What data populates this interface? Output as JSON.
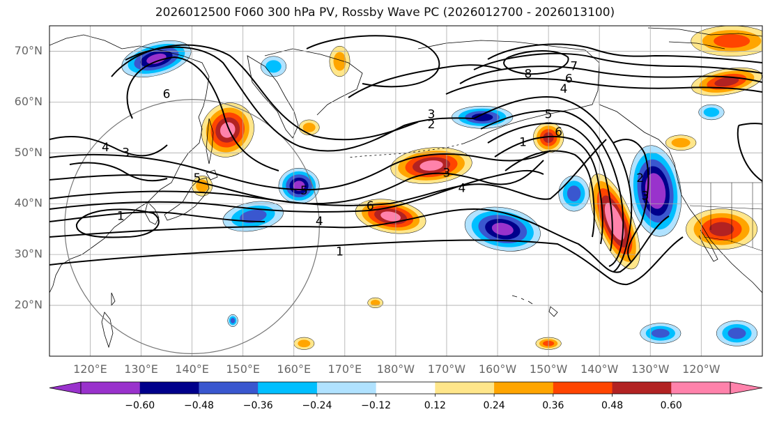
{
  "title": "2026012500 F060 300 hPa PV, Rossby Wave PC (2026012700 - 2026013100)",
  "map": {
    "lon_range": [
      112,
      252
    ],
    "lat_range": [
      10,
      75
    ],
    "lat_ticks": [
      {
        "lat": 70,
        "label": "70°N"
      },
      {
        "lat": 60,
        "label": "60°N"
      },
      {
        "lat": 50,
        "label": "50°N"
      },
      {
        "lat": 40,
        "label": "40°N"
      },
      {
        "lat": 30,
        "label": "30°N"
      },
      {
        "lat": 20,
        "label": "20°N"
      }
    ],
    "lon_ticks": [
      {
        "lon": 120,
        "label": "120°E"
      },
      {
        "lon": 130,
        "label": "130°E"
      },
      {
        "lon": 140,
        "label": "140°E"
      },
      {
        "lon": 150,
        "label": "150°E"
      },
      {
        "lon": 160,
        "label": "160°E"
      },
      {
        "lon": 170,
        "label": "170°E"
      },
      {
        "lon": 180,
        "label": "180°W"
      },
      {
        "lon": 190,
        "label": "170°W"
      },
      {
        "lon": 200,
        "label": "160°W"
      },
      {
        "lon": 210,
        "label": "150°W"
      },
      {
        "lon": 220,
        "label": "140°W"
      },
      {
        "lon": 230,
        "label": "130°W"
      },
      {
        "lon": 240,
        "label": "120°W"
      }
    ],
    "gridlines": true,
    "circle": {
      "lon": 140,
      "lat": 35.5,
      "radius_deg": 25
    }
  },
  "colorbar": {
    "colors": [
      "#9932cc",
      "#00008b",
      "#3a57cf",
      "#00bfff",
      "#b0e2ff",
      "#ffffff",
      "#ffe68a",
      "#ffa500",
      "#ff4500",
      "#b22222",
      "#ff82ab"
    ],
    "tick_labels": [
      "−0.60",
      "−0.48",
      "−0.36",
      "−0.24",
      "−0.12",
      "0.12",
      "0.24",
      "0.36",
      "0.48",
      "0.60"
    ],
    "extend": "both"
  },
  "anomalies": [
    {
      "lon": 133,
      "lat": 68.5,
      "rx": 7,
      "ry": 3.2,
      "rot": -15,
      "sign": -1,
      "levels": 5
    },
    {
      "lon": 156,
      "lat": 67,
      "rx": 2.5,
      "ry": 2,
      "rot": 0,
      "sign": -1,
      "levels": 2
    },
    {
      "lon": 147,
      "lat": 54.5,
      "rx": 5,
      "ry": 5.5,
      "rot": 35,
      "sign": 1,
      "levels": 5
    },
    {
      "lon": 161,
      "lat": 43.5,
      "rx": 4,
      "ry": 3.5,
      "rot": 0,
      "sign": -1,
      "levels": 5
    },
    {
      "lon": 152,
      "lat": 37.5,
      "rx": 6,
      "ry": 2.8,
      "rot": -10,
      "sign": -1,
      "levels": 3
    },
    {
      "lon": 179,
      "lat": 37.5,
      "rx": 7,
      "ry": 3.2,
      "rot": 10,
      "sign": 1,
      "levels": 5
    },
    {
      "lon": 187,
      "lat": 47.5,
      "rx": 8,
      "ry": 3.5,
      "rot": -5,
      "sign": 1,
      "levels": 5
    },
    {
      "lon": 197,
      "lat": 57,
      "rx": 6,
      "ry": 2.2,
      "rot": 0,
      "sign": -1,
      "levels": 4
    },
    {
      "lon": 201,
      "lat": 35,
      "rx": 7.5,
      "ry": 4.2,
      "rot": 10,
      "sign": -1,
      "levels": 5
    },
    {
      "lon": 215,
      "lat": 42,
      "rx": 3,
      "ry": 3.5,
      "rot": 0,
      "sign": -1,
      "levels": 3
    },
    {
      "lon": 210,
      "lat": 53,
      "rx": 3,
      "ry": 3,
      "rot": 0,
      "sign": 1,
      "levels": 4
    },
    {
      "lon": 223,
      "lat": 36.5,
      "rx": 3.5,
      "ry": 10,
      "rot": -22,
      "sign": 1,
      "levels": 6
    },
    {
      "lon": 231,
      "lat": 42.5,
      "rx": 5,
      "ry": 9,
      "rot": -8,
      "sign": -1,
      "levels": 6
    },
    {
      "lon": 244,
      "lat": 35,
      "rx": 7,
      "ry": 4,
      "rot": 0,
      "sign": 1,
      "levels": 4
    },
    {
      "lon": 246,
      "lat": 72,
      "rx": 8,
      "ry": 3,
      "rot": 0,
      "sign": 1,
      "levels": 3
    },
    {
      "lon": 245,
      "lat": 64,
      "rx": 7,
      "ry": 2.5,
      "rot": -10,
      "sign": 1,
      "levels": 4
    },
    {
      "lon": 232,
      "lat": 14.5,
      "rx": 4,
      "ry": 2,
      "rot": 0,
      "sign": -1,
      "levels": 3
    },
    {
      "lon": 247,
      "lat": 14.5,
      "rx": 4,
      "ry": 2.5,
      "rot": 0,
      "sign": -1,
      "levels": 3
    },
    {
      "lon": 210,
      "lat": 12.5,
      "rx": 2.5,
      "ry": 1.2,
      "rot": 0,
      "sign": 1,
      "levels": 3
    },
    {
      "lon": 162,
      "lat": 12.5,
      "rx": 2,
      "ry": 1.2,
      "rot": 0,
      "sign": 1,
      "levels": 2
    },
    {
      "lon": 176,
      "lat": 20.5,
      "rx": 1.5,
      "ry": 1,
      "rot": 0,
      "sign": 1,
      "levels": 2
    },
    {
      "lon": 169,
      "lat": 68,
      "rx": 2,
      "ry": 3,
      "rot": 0,
      "sign": 1,
      "levels": 2
    },
    {
      "lon": 163,
      "lat": 55,
      "rx": 2,
      "ry": 1.5,
      "rot": 0,
      "sign": 1,
      "levels": 2
    },
    {
      "lon": 142,
      "lat": 43.5,
      "rx": 2,
      "ry": 2,
      "rot": 0,
      "sign": 1,
      "levels": 2
    },
    {
      "lon": 148,
      "lat": 17,
      "rx": 1,
      "ry": 1.2,
      "rot": 0,
      "sign": -1,
      "levels": 3
    },
    {
      "lon": 242,
      "lat": 58,
      "rx": 2.5,
      "ry": 1.5,
      "rot": 0,
      "sign": -1,
      "levels": 2
    },
    {
      "lon": 236,
      "lat": 52,
      "rx": 3,
      "ry": 1.5,
      "rot": 0,
      "sign": 1,
      "levels": 2
    }
  ],
  "contour_labels": [
    {
      "lon": 135,
      "lat": 61.5,
      "text": "6"
    },
    {
      "lon": 123,
      "lat": 51,
      "text": "4"
    },
    {
      "lon": 127,
      "lat": 50,
      "text": "3"
    },
    {
      "lon": 141,
      "lat": 45,
      "text": "5"
    },
    {
      "lon": 126,
      "lat": 37.5,
      "text": "1"
    },
    {
      "lon": 162,
      "lat": 42.5,
      "text": "5"
    },
    {
      "lon": 165,
      "lat": 36.5,
      "text": "4"
    },
    {
      "lon": 175,
      "lat": 39.5,
      "text": "6"
    },
    {
      "lon": 190,
      "lat": 46,
      "text": "3"
    },
    {
      "lon": 193,
      "lat": 43,
      "text": "4"
    },
    {
      "lon": 187,
      "lat": 57.5,
      "text": "3"
    },
    {
      "lon": 187,
      "lat": 55.5,
      "text": "2"
    },
    {
      "lon": 205,
      "lat": 52,
      "text": "1"
    },
    {
      "lon": 212,
      "lat": 54,
      "text": "6"
    },
    {
      "lon": 210,
      "lat": 57.5,
      "text": "5"
    },
    {
      "lon": 206,
      "lat": 65.5,
      "text": "8"
    },
    {
      "lon": 215,
      "lat": 67,
      "text": "7"
    },
    {
      "lon": 214,
      "lat": 64.5,
      "text": "6"
    },
    {
      "lon": 213,
      "lat": 62.5,
      "text": "4"
    },
    {
      "lon": 228,
      "lat": 45,
      "text": "2"
    },
    {
      "lon": 229,
      "lat": 41.5,
      "text": "3"
    },
    {
      "lon": 169,
      "lat": 30.5,
      "text": "1"
    }
  ]
}
